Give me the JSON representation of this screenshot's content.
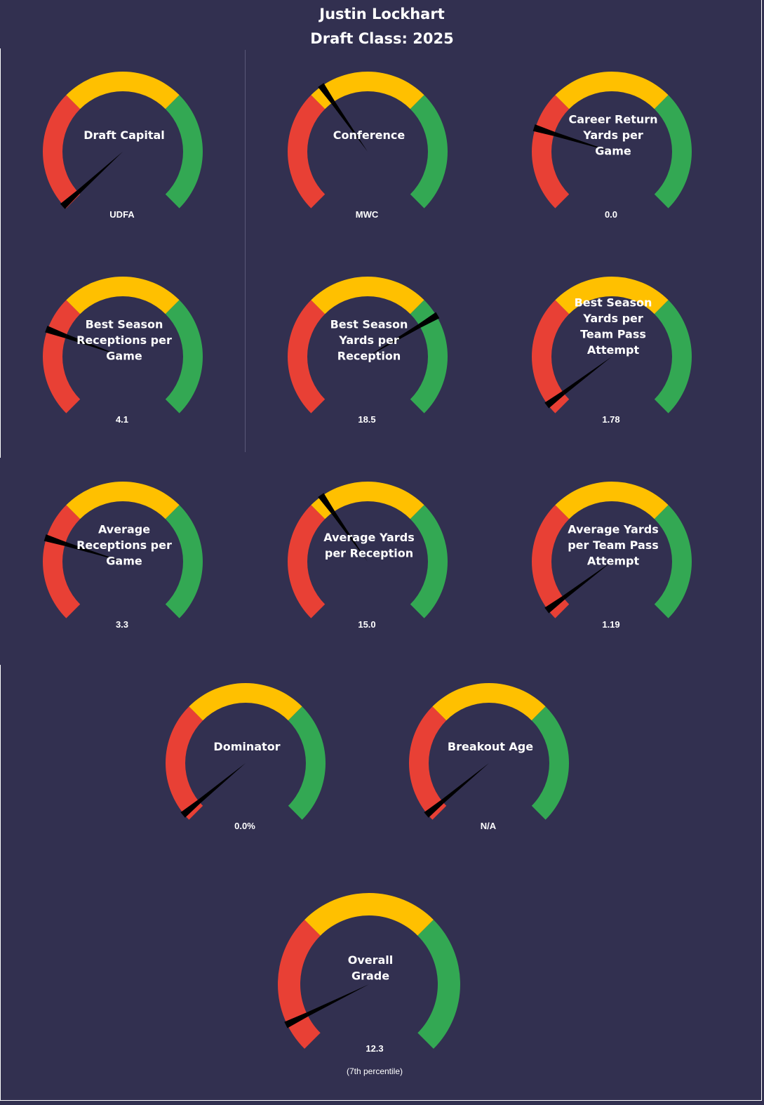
{
  "header": {
    "player_name": "Justin Lockhart",
    "draft_class": "Draft Class: 2025"
  },
  "colors": {
    "background": "#323050",
    "low": "#e84035",
    "mid": "#ffc000",
    "high": "#33a853",
    "needle": "#000000"
  },
  "chart_data": [
    {
      "type": "gauge",
      "label": [
        "Draft Capital"
      ],
      "value_text": "UDFA",
      "needle_pct": 0.01,
      "range": [
        0,
        100
      ]
    },
    {
      "type": "gauge",
      "label": [
        "Conference"
      ],
      "value_text": "MWC",
      "needle_pct": 0.37,
      "range": [
        0,
        100
      ]
    },
    {
      "type": "gauge",
      "label": [
        "Career Return",
        "Yards per",
        "Game"
      ],
      "value_text": "0.0",
      "needle_pct": 0.23,
      "range": [
        0,
        100
      ]
    },
    {
      "type": "gauge",
      "label": [
        "Best Season",
        "Receptions per",
        "Game"
      ],
      "value_text": "4.1",
      "needle_pct": 0.24,
      "range": [
        0,
        100
      ]
    },
    {
      "type": "gauge",
      "label": [
        "Best Season",
        "Yards per",
        "Reception"
      ],
      "value_text": "18.5",
      "needle_pct": 0.72,
      "range": [
        0,
        100
      ]
    },
    {
      "type": "gauge",
      "label": [
        "Best Season",
        "Yards per",
        "Team Pass",
        "Attempt"
      ],
      "value_text": "1.78",
      "needle_pct": 0.03,
      "range": [
        0,
        100
      ]
    },
    {
      "type": "gauge",
      "label": [
        "Average",
        "Receptions per",
        "Game"
      ],
      "value_text": "3.3",
      "needle_pct": 0.23,
      "range": [
        0,
        100
      ]
    },
    {
      "type": "gauge",
      "label": [
        "Average Yards",
        "per Reception"
      ],
      "value_text": "15.0",
      "needle_pct": 0.37,
      "range": [
        0,
        100
      ]
    },
    {
      "type": "gauge",
      "label": [
        "Average Yards",
        "per Team Pass",
        "Attempt"
      ],
      "value_text": "1.19",
      "needle_pct": 0.03,
      "range": [
        0,
        100
      ]
    },
    {
      "type": "gauge",
      "label": [
        "Dominator"
      ],
      "value_text": "0.0%",
      "needle_pct": 0.02,
      "range": [
        0,
        100
      ]
    },
    {
      "type": "gauge",
      "label": [
        "Breakout Age"
      ],
      "value_text": "N/A",
      "needle_pct": 0.02,
      "range": [
        0,
        100
      ]
    },
    {
      "type": "gauge",
      "label": [
        "Overall",
        "Grade"
      ],
      "value_text": "12.3",
      "sub_text": "(7th  percentile)",
      "needle_pct": 0.07,
      "range": [
        0,
        100
      ]
    }
  ]
}
